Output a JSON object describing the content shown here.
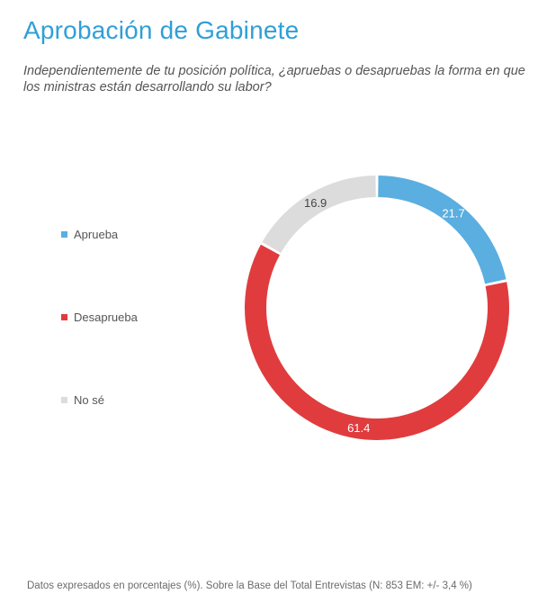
{
  "title": "Aprobación de Gabinete",
  "subtitle": "Independientemente de tu posición política, ¿apruebas o desapruebas la forma en que los ministras están desarrollando su labor?",
  "footnote": "Datos expresados en porcentajes (%). Sobre la Base del Total Entrevistas (N: 853  EM: +/- 3,4 %)",
  "chart_data": {
    "type": "pie",
    "variant": "donut",
    "categories": [
      "Aprueba",
      "Desaprueba",
      "No sé"
    ],
    "values": [
      21.7,
      61.4,
      16.9
    ],
    "colors": [
      "#5aaee0",
      "#e03c3e",
      "#dcdcdc"
    ],
    "label_colors": [
      "#ffffff",
      "#ffffff",
      "#444444"
    ],
    "start_angle_deg": 0,
    "direction": "clockwise",
    "legend_position": "left"
  },
  "legend": [
    {
      "label": "Aprueba",
      "color": "#5aaee0"
    },
    {
      "label": "Desaprueba",
      "color": "#e03c3e"
    },
    {
      "label": "No sé",
      "color": "#dcdcdc"
    }
  ]
}
